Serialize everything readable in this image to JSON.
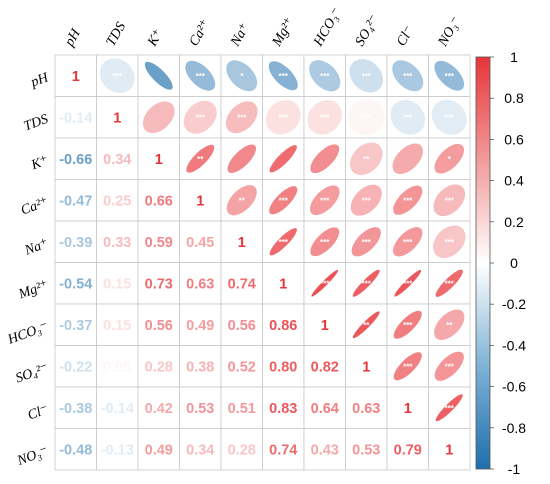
{
  "chart_data": {
    "type": "heatmap",
    "title": "",
    "variables": [
      {
        "col": "pH",
        "row": "pH"
      },
      {
        "col": "TDS",
        "row": "TDS"
      },
      {
        "col": "K⁺",
        "row": "K⁺"
      },
      {
        "col": "Ca²⁺",
        "row": "Ca²⁺"
      },
      {
        "col": "Na⁺",
        "row": "Na⁺"
      },
      {
        "col": "Mg²⁺",
        "row": "Mg²⁺"
      },
      {
        "col": "HCO₃⁻",
        "row": "HCO₃⁻"
      },
      {
        "col": "SO₄²⁻",
        "row": "SO₄²⁻"
      },
      {
        "col": "Cl⁻",
        "row": "Cl⁻"
      },
      {
        "col": "NO₃⁻",
        "row": "NO₃⁻"
      }
    ],
    "matrix": [
      [
        1,
        -0.14,
        -0.66,
        -0.47,
        -0.39,
        -0.54,
        -0.37,
        -0.22,
        -0.38,
        -0.48
      ],
      [
        -0.14,
        1,
        0.34,
        0.25,
        0.33,
        0.15,
        0.15,
        0.05,
        -0.14,
        -0.13
      ],
      [
        -0.66,
        0.34,
        1,
        0.66,
        0.59,
        0.73,
        0.56,
        0.28,
        0.42,
        0.49
      ],
      [
        -0.47,
        0.25,
        0.66,
        1,
        0.45,
        0.63,
        0.49,
        0.38,
        0.53,
        0.34
      ],
      [
        -0.39,
        0.33,
        0.59,
        0.45,
        1,
        0.74,
        0.56,
        0.52,
        0.51,
        0.28
      ],
      [
        -0.54,
        0.15,
        0.73,
        0.63,
        0.74,
        1,
        0.86,
        0.8,
        0.83,
        0.74
      ],
      [
        -0.37,
        0.15,
        0.56,
        0.49,
        0.56,
        0.86,
        1,
        0.82,
        0.64,
        0.43
      ],
      [
        -0.22,
        0.05,
        0.28,
        0.38,
        0.52,
        0.8,
        0.82,
        1,
        0.63,
        0.53
      ],
      [
        -0.38,
        -0.14,
        0.42,
        0.53,
        0.51,
        0.83,
        0.64,
        0.63,
        1,
        0.79
      ],
      [
        -0.48,
        -0.13,
        0.49,
        0.34,
        0.28,
        0.74,
        0.43,
        0.53,
        0.79,
        1
      ]
    ],
    "significance": [
      [
        "",
        "***",
        "",
        "***",
        "*",
        "***",
        "***",
        "***",
        "***",
        "***"
      ],
      [
        "",
        "",
        "",
        "***",
        "***",
        "***",
        "***",
        "***",
        "***",
        "***"
      ],
      [
        "",
        "",
        "",
        "**",
        "",
        "",
        "",
        "**",
        "",
        "*"
      ],
      [
        "",
        "",
        "",
        "",
        "**",
        "***",
        "***",
        "***",
        "***",
        "***"
      ],
      [
        "",
        "",
        "",
        "",
        "",
        "***",
        "***",
        "***",
        "***",
        "***"
      ],
      [
        "",
        "",
        "",
        "",
        "",
        "",
        "***",
        "***",
        "***",
        "***"
      ],
      [
        "",
        "",
        "",
        "",
        "",
        "",
        "",
        "**",
        "***",
        "**"
      ],
      [
        "",
        "",
        "",
        "",
        "",
        "",
        "",
        "",
        "***",
        "***"
      ],
      [
        "",
        "",
        "",
        "",
        "",
        "",
        "",
        "",
        "",
        "***"
      ],
      [
        "",
        "",
        "",
        "",
        "",
        "",
        "",
        "",
        "",
        ""
      ]
    ],
    "lower_triangle": "numbers",
    "upper_triangle": "ellipses",
    "colorscale": {
      "low": "#1f6fad",
      "mid": "#ffffff",
      "high": "#e8353a"
    },
    "legend": {
      "position": "right",
      "range": [
        -1,
        1
      ],
      "ticks": [
        "1",
        "0.8",
        "0.6",
        "0.4",
        "0.2",
        "0",
        "-0.2",
        "-0.4",
        "-0.6",
        "-0.8",
        "-1"
      ]
    }
  }
}
